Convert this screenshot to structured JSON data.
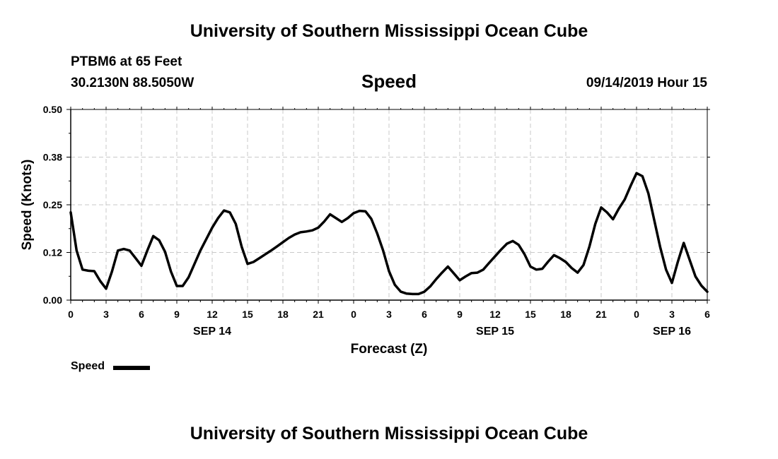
{
  "header": {
    "title": "University of Southern Mississippi Ocean Cube",
    "station": "PTBM6 at 65 Feet",
    "coordinates": "30.2130N 88.5050W",
    "variable": "Speed",
    "datetime": "09/14/2019 Hour 15"
  },
  "footer": {
    "title": "University of Southern Mississippi Ocean Cube"
  },
  "legend": {
    "label": "Speed"
  },
  "colors": {
    "line": "#000000",
    "grid": "#c8c8c8",
    "background": "#ffffff"
  },
  "chart_data": {
    "type": "line",
    "title": "Speed",
    "xlabel": "Forecast (Z)",
    "ylabel": "Speed (Knots)",
    "xlim": [
      0,
      54
    ],
    "ylim": [
      0,
      0.5
    ],
    "yticks": [
      "0.00",
      "0.12",
      "0.25",
      "0.38",
      "0.50"
    ],
    "ytick_values": [
      0,
      0.125,
      0.25,
      0.375,
      0.5
    ],
    "xtick_positions": [
      0,
      3,
      6,
      9,
      12,
      15,
      18,
      21,
      24,
      27,
      30,
      33,
      36,
      39,
      42,
      45,
      48,
      51,
      54
    ],
    "xtick_labels": [
      "0",
      "3",
      "6",
      "9",
      "12",
      "15",
      "18",
      "21",
      "0",
      "3",
      "6",
      "9",
      "12",
      "15",
      "18",
      "21",
      "0",
      "3",
      "6"
    ],
    "date_labels": [
      {
        "text": "SEP 14",
        "x": 12
      },
      {
        "text": "SEP 15",
        "x": 36
      },
      {
        "text": "SEP 16",
        "x": 51
      }
    ],
    "grid": true,
    "legend_position": "bottom-left",
    "series": [
      {
        "name": "Speed",
        "x": [
          0,
          0.5,
          1,
          1.5,
          2,
          2.5,
          3,
          3.5,
          4,
          4.5,
          5,
          5.5,
          6,
          6.5,
          7,
          7.5,
          8,
          8.5,
          9,
          9.5,
          10,
          10.5,
          11,
          11.5,
          12,
          12.5,
          13,
          13.5,
          14,
          14.5,
          15,
          15.5,
          16,
          16.5,
          17,
          17.5,
          18,
          18.5,
          19,
          19.5,
          20,
          20.5,
          21,
          21.5,
          22,
          22.5,
          23,
          23.5,
          24,
          24.5,
          25,
          25.5,
          26,
          26.5,
          27,
          27.5,
          28,
          28.5,
          29,
          29.5,
          30,
          30.5,
          31,
          31.5,
          32,
          32.5,
          33,
          33.5,
          34,
          34.5,
          35,
          35.5,
          36,
          36.5,
          37,
          37.5,
          38,
          38.5,
          39,
          39.5,
          40,
          40.5,
          41,
          41.5,
          42,
          42.5,
          43,
          43.5,
          44,
          44.5,
          45,
          45.5,
          46,
          46.5,
          47,
          47.5,
          48,
          48.5,
          49,
          49.5,
          50,
          50.5,
          51,
          51.5,
          52,
          52.5,
          53,
          53.5,
          54
        ],
        "values": [
          0.23,
          0.13,
          0.08,
          0.077,
          0.076,
          0.05,
          0.03,
          0.075,
          0.13,
          0.134,
          0.13,
          0.11,
          0.09,
          0.13,
          0.168,
          0.157,
          0.127,
          0.075,
          0.037,
          0.037,
          0.06,
          0.095,
          0.13,
          0.16,
          0.19,
          0.215,
          0.235,
          0.23,
          0.2,
          0.14,
          0.095,
          0.1,
          0.11,
          0.12,
          0.13,
          0.141,
          0.152,
          0.163,
          0.172,
          0.178,
          0.18,
          0.183,
          0.19,
          0.206,
          0.225,
          0.215,
          0.205,
          0.215,
          0.228,
          0.234,
          0.233,
          0.213,
          0.175,
          0.13,
          0.076,
          0.04,
          0.022,
          0.017,
          0.016,
          0.016,
          0.022,
          0.036,
          0.055,
          0.072,
          0.088,
          0.07,
          0.052,
          0.062,
          0.071,
          0.072,
          0.08,
          0.098,
          0.115,
          0.132,
          0.148,
          0.155,
          0.145,
          0.12,
          0.088,
          0.08,
          0.082,
          0.101,
          0.118,
          0.11,
          0.1,
          0.084,
          0.072,
          0.092,
          0.14,
          0.2,
          0.243,
          0.23,
          0.212,
          0.24,
          0.264,
          0.3,
          0.333,
          0.325,
          0.28,
          0.21,
          0.14,
          0.08,
          0.045,
          0.1,
          0.15,
          0.106,
          0.062,
          0.038,
          0.022
        ]
      }
    ]
  }
}
